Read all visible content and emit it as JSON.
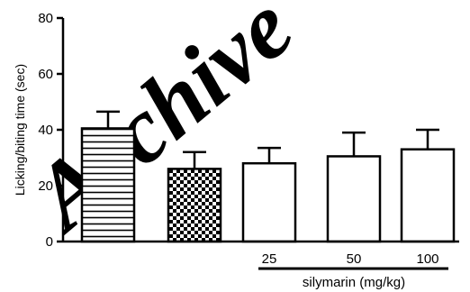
{
  "chart_data": {
    "type": "bar",
    "title": "",
    "xlabel": "",
    "ylabel": "Licking/biting time (sec)",
    "ylim": [
      0,
      80
    ],
    "yticks": [
      0,
      20,
      40,
      60,
      80
    ],
    "grid": false,
    "legend": "none",
    "categories": [
      "",
      "",
      "25",
      "50",
      "100"
    ],
    "values": [
      40.5,
      26,
      28,
      30.5,
      33
    ],
    "errors": [
      6,
      6,
      5.5,
      8.5,
      7
    ],
    "fills": [
      "horizontal-stripes",
      "checkerboard",
      "white",
      "white",
      "white"
    ],
    "group_label": "silymarin (mg/kg)"
  },
  "watermark": {
    "text": "Archive",
    "color": "#d7d7d7"
  }
}
